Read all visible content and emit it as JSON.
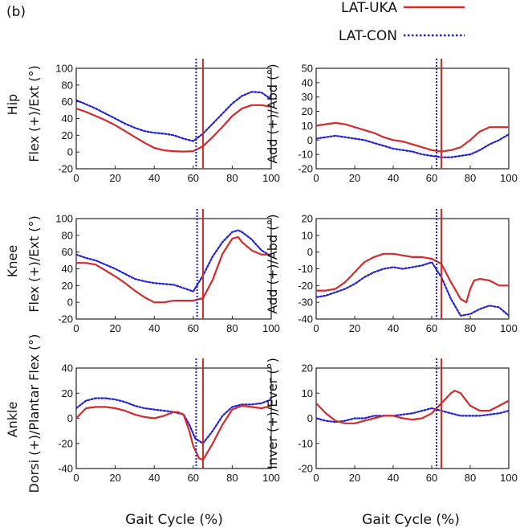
{
  "figure": {
    "panel_label": "(b)",
    "xlabel": "Gait Cycle (%)",
    "row_labels": [
      "Hip",
      "Knee",
      "Ankle"
    ],
    "colors": {
      "uka": "#d42a2a",
      "con": "#1f1fd6",
      "axis": "#222222"
    }
  },
  "legend": [
    {
      "label": "LAT-UKA",
      "style": "solid",
      "color": "#d42a2a"
    },
    {
      "label": "LAT-CON",
      "style": "dotted",
      "color": "#1f1fd6"
    }
  ],
  "chart_data": [
    {
      "type": "line",
      "joint": "Hip",
      "ylabel": "Flex (+)/Ext (°)",
      "xlim": [
        0,
        100
      ],
      "ylim": [
        -20,
        100
      ],
      "xticks": [
        0,
        20,
        40,
        60,
        80,
        100
      ],
      "yticks": [
        -20,
        0,
        20,
        40,
        60,
        80,
        100
      ],
      "vlines": [
        {
          "series": "LAT-UKA",
          "x": 65
        },
        {
          "series": "LAT-CON",
          "x": 61.5
        }
      ],
      "series": [
        {
          "name": "LAT-UKA",
          "x": [
            0,
            5,
            10,
            15,
            20,
            25,
            30,
            35,
            40,
            45,
            50,
            55,
            60,
            65,
            70,
            75,
            80,
            85,
            90,
            95,
            100
          ],
          "y": [
            52,
            48,
            43,
            38,
            32,
            25,
            18,
            11,
            5,
            2,
            1,
            0.5,
            1,
            7,
            18,
            30,
            43,
            52,
            56,
            56,
            54
          ]
        },
        {
          "name": "LAT-CON",
          "x": [
            0,
            5,
            10,
            15,
            20,
            25,
            30,
            35,
            40,
            45,
            50,
            55,
            60,
            65,
            70,
            75,
            80,
            85,
            90,
            95,
            100
          ],
          "y": [
            62,
            57,
            52,
            46,
            40,
            34,
            29,
            25,
            23,
            22,
            20,
            16,
            13,
            22,
            34,
            46,
            58,
            67,
            72,
            71,
            63
          ]
        }
      ]
    },
    {
      "type": "line",
      "joint": "Hip",
      "ylabel": "Add (+)/Abd (°)",
      "xlim": [
        0,
        100
      ],
      "ylim": [
        -20,
        50
      ],
      "xticks": [
        0,
        20,
        40,
        60,
        80,
        100
      ],
      "yticks": [
        -20,
        -10,
        0,
        10,
        20,
        30,
        40,
        50
      ],
      "vlines": [
        {
          "series": "LAT-UKA",
          "x": 65
        },
        {
          "series": "LAT-CON",
          "x": 62.5
        }
      ],
      "series": [
        {
          "name": "LAT-UKA",
          "x": [
            0,
            5,
            10,
            15,
            20,
            25,
            30,
            35,
            40,
            45,
            50,
            55,
            60,
            65,
            70,
            75,
            80,
            85,
            90,
            95,
            100
          ],
          "y": [
            10,
            11,
            12,
            11,
            9,
            7,
            5,
            2,
            0,
            -1,
            -3,
            -5,
            -7,
            -8,
            -7,
            -5,
            0,
            6,
            9,
            9,
            9
          ]
        },
        {
          "name": "LAT-CON",
          "x": [
            0,
            5,
            10,
            15,
            20,
            25,
            30,
            35,
            40,
            45,
            50,
            55,
            60,
            65,
            70,
            75,
            80,
            85,
            90,
            95,
            100
          ],
          "y": [
            1,
            2,
            3,
            2,
            1,
            0,
            -2,
            -4,
            -6,
            -7,
            -8,
            -10,
            -11,
            -12,
            -12,
            -11,
            -10,
            -7,
            -3,
            0,
            4
          ]
        }
      ]
    },
    {
      "type": "line",
      "joint": "Knee",
      "ylabel": "Flex (+)/Ext (°)",
      "xlim": [
        0,
        100
      ],
      "ylim": [
        -20,
        100
      ],
      "xticks": [
        0,
        20,
        40,
        60,
        80,
        100
      ],
      "yticks": [
        -20,
        0,
        20,
        40,
        60,
        80,
        100
      ],
      "vlines": [
        {
          "series": "LAT-UKA",
          "x": 65
        },
        {
          "series": "LAT-CON",
          "x": 62
        }
      ],
      "series": [
        {
          "name": "LAT-UKA",
          "x": [
            0,
            5,
            10,
            15,
            20,
            25,
            30,
            35,
            40,
            45,
            50,
            55,
            60,
            65,
            70,
            75,
            80,
            83,
            85,
            90,
            95,
            100
          ],
          "y": [
            47,
            47,
            45,
            38,
            31,
            23,
            14,
            6,
            0,
            0,
            2,
            2,
            2,
            5,
            27,
            58,
            76,
            78,
            72,
            62,
            57,
            57
          ]
        },
        {
          "name": "LAT-CON",
          "x": [
            0,
            5,
            10,
            15,
            20,
            25,
            30,
            35,
            40,
            45,
            50,
            55,
            60,
            65,
            70,
            75,
            80,
            83,
            85,
            90,
            95,
            100
          ],
          "y": [
            57,
            53,
            50,
            45,
            40,
            34,
            28,
            25,
            23,
            22,
            21,
            17,
            13,
            32,
            55,
            72,
            84,
            86,
            84,
            75,
            62,
            55
          ]
        }
      ]
    },
    {
      "type": "line",
      "joint": "Knee",
      "ylabel": "Add (+)/Abd (°)",
      "xlim": [
        0,
        100
      ],
      "ylim": [
        -40,
        20
      ],
      "xticks": [
        0,
        20,
        40,
        60,
        80,
        100
      ],
      "yticks": [
        -40,
        -30,
        -20,
        -10,
        0,
        10,
        20
      ],
      "vlines": [
        {
          "series": "LAT-UKA",
          "x": 65
        },
        {
          "series": "LAT-CON",
          "x": 62.5
        }
      ],
      "series": [
        {
          "name": "LAT-UKA",
          "x": [
            0,
            5,
            10,
            15,
            20,
            25,
            30,
            35,
            40,
            45,
            50,
            55,
            60,
            65,
            70,
            75,
            78,
            80,
            82,
            85,
            90,
            95,
            100
          ],
          "y": [
            -23,
            -23,
            -22,
            -18,
            -12,
            -6,
            -3,
            -1,
            -1,
            -2,
            -3,
            -3,
            -4,
            -7,
            -18,
            -28,
            -30,
            -22,
            -17,
            -16,
            -17,
            -20,
            -20
          ]
        },
        {
          "name": "LAT-CON",
          "x": [
            0,
            5,
            10,
            15,
            20,
            25,
            30,
            35,
            40,
            45,
            50,
            55,
            60,
            65,
            70,
            75,
            80,
            85,
            90,
            95,
            100
          ],
          "y": [
            -27,
            -26,
            -24,
            -22,
            -19,
            -15,
            -12,
            -10,
            -9,
            -10,
            -9,
            -8,
            -6,
            -15,
            -28,
            -38,
            -37,
            -34,
            -32,
            -33,
            -38
          ]
        }
      ]
    },
    {
      "type": "line",
      "joint": "Ankle",
      "ylabel": "Dorsi (+)/Plantar Flex (°)",
      "xlim": [
        0,
        100
      ],
      "ylim": [
        -40,
        40
      ],
      "xticks": [
        0,
        20,
        40,
        60,
        80,
        100
      ],
      "yticks": [
        -40,
        -20,
        0,
        20,
        40
      ],
      "vlines": [
        {
          "series": "LAT-UKA",
          "x": 65
        },
        {
          "series": "LAT-CON",
          "x": 61.5
        }
      ],
      "series": [
        {
          "name": "LAT-UKA",
          "x": [
            0,
            5,
            10,
            15,
            20,
            25,
            30,
            35,
            40,
            45,
            50,
            52,
            55,
            58,
            60,
            63,
            65,
            70,
            75,
            80,
            85,
            90,
            95,
            100
          ],
          "y": [
            0,
            8,
            9,
            9,
            8,
            6,
            3,
            1,
            0,
            2,
            5,
            5,
            3,
            -10,
            -22,
            -32,
            -33,
            -20,
            -5,
            7,
            10,
            9,
            8,
            10
          ]
        },
        {
          "name": "LAT-CON",
          "x": [
            0,
            5,
            10,
            15,
            20,
            25,
            30,
            35,
            40,
            45,
            50,
            55,
            58,
            61,
            65,
            70,
            75,
            80,
            85,
            90,
            95,
            100
          ],
          "y": [
            8,
            14,
            16,
            16,
            15,
            13,
            10,
            8,
            7,
            6,
            5,
            3,
            -5,
            -16,
            -20,
            -10,
            2,
            9,
            11,
            11,
            12,
            15
          ]
        }
      ]
    },
    {
      "type": "line",
      "joint": "Ankle",
      "ylabel": "Inver (+)/Ever (°)",
      "xlim": [
        0,
        100
      ],
      "ylim": [
        -20,
        20
      ],
      "xticks": [
        0,
        20,
        40,
        60,
        80,
        100
      ],
      "yticks": [
        -20,
        -10,
        0,
        10,
        20
      ],
      "vlines": [
        {
          "series": "LAT-UKA",
          "x": 65
        },
        {
          "series": "LAT-CON",
          "x": 62.5
        }
      ],
      "series": [
        {
          "name": "LAT-UKA",
          "x": [
            0,
            5,
            10,
            15,
            20,
            25,
            30,
            35,
            40,
            45,
            50,
            55,
            60,
            65,
            70,
            72,
            75,
            80,
            85,
            90,
            95,
            100
          ],
          "y": [
            6,
            2,
            -1,
            -2,
            -2,
            -1,
            0,
            1,
            1,
            0,
            -0.5,
            0,
            2,
            6,
            10,
            11,
            10,
            5,
            3,
            3,
            5,
            7
          ]
        },
        {
          "name": "LAT-CON",
          "x": [
            0,
            5,
            10,
            15,
            20,
            25,
            30,
            35,
            40,
            45,
            50,
            55,
            60,
            65,
            70,
            75,
            80,
            85,
            90,
            95,
            100
          ],
          "y": [
            0,
            -1,
            -1.5,
            -1,
            0,
            0,
            1,
            1,
            1,
            1.5,
            2,
            3,
            4,
            3,
            2,
            1,
            1,
            1,
            1.5,
            2,
            3
          ]
        }
      ]
    }
  ]
}
